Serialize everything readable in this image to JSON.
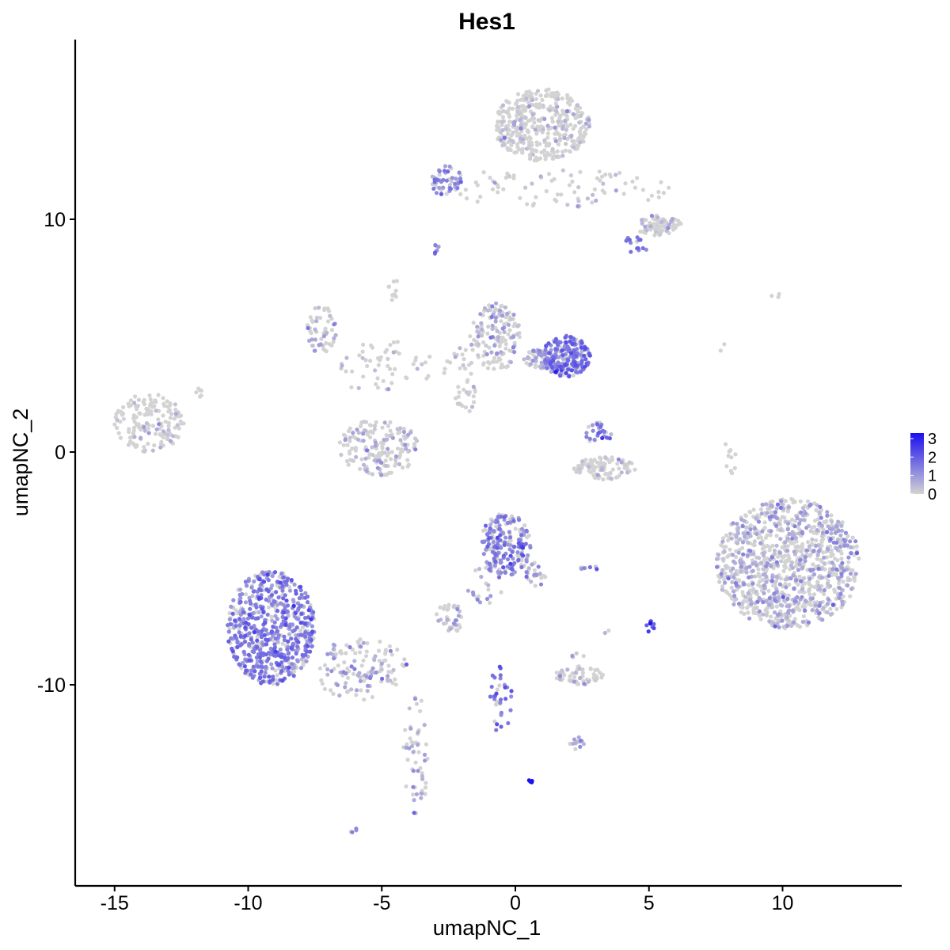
{
  "chart_data": {
    "type": "scatter",
    "title": "Hes1",
    "xlabel": "umapNC_1",
    "ylabel": "umapNC_2",
    "xlim": [
      -16.5,
      14.5
    ],
    "ylim": [
      -18.5,
      17.5
    ],
    "xticks": [
      -15,
      -10,
      -5,
      0,
      5,
      10
    ],
    "yticks": [
      -10,
      0,
      10
    ],
    "grid": false,
    "legend": {
      "placement": "right",
      "type": "colorbar",
      "labels": [
        "3",
        "2",
        "1",
        "0"
      ],
      "min": 0,
      "max": 3.3,
      "low_color": "#d3d3d3",
      "high_color": "#1c0ff0"
    },
    "point_color_low": "#d3d3d3",
    "point_color_high": "#1c0ff0",
    "clusters": [
      {
        "x": [
          -15.0,
          -12.4
        ],
        "y": [
          0.0,
          2.5
        ],
        "mean": 0.02,
        "weight": 170
      },
      {
        "x": [
          -12.0,
          -11.5
        ],
        "y": [
          2.3,
          2.8
        ],
        "mean": 0.0,
        "weight": 6
      },
      {
        "x": [
          -7.8,
          -6.7
        ],
        "y": [
          4.2,
          6.3
        ],
        "mean": 0.5,
        "weight": 55
      },
      {
        "x": [
          -6.8,
          -3.0
        ],
        "y": [
          2.5,
          4.8
        ],
        "mean": 0.05,
        "weight": 55
      },
      {
        "x": [
          -4.8,
          -4.4
        ],
        "y": [
          6.5,
          7.6
        ],
        "mean": 0.0,
        "weight": 10
      },
      {
        "x": [
          -2.8,
          -1.3
        ],
        "y": [
          1.5,
          4.5
        ],
        "mean": 0.05,
        "weight": 40
      },
      {
        "x": [
          -6.6,
          -3.6
        ],
        "y": [
          -1.0,
          1.4
        ],
        "mean": 0.35,
        "weight": 170
      },
      {
        "x": [
          -1.7,
          0.2
        ],
        "y": [
          3.5,
          6.4
        ],
        "mean": 0.55,
        "weight": 150
      },
      {
        "x": [
          0.3,
          1.6
        ],
        "y": [
          3.6,
          4.4
        ],
        "mean": 0.7,
        "weight": 60
      },
      {
        "x": [
          1.0,
          2.8
        ],
        "y": [
          3.2,
          5.0
        ],
        "mean": 1.5,
        "weight": 220
      },
      {
        "x": [
          2.2,
          4.5
        ],
        "y": [
          -1.2,
          -0.2
        ],
        "mean": 0.15,
        "weight": 100
      },
      {
        "x": [
          2.6,
          3.6
        ],
        "y": [
          0.3,
          1.3
        ],
        "mean": 1.4,
        "weight": 30
      },
      {
        "x": [
          -3.2,
          6.0
        ],
        "y": [
          10.5,
          12.2
        ],
        "mean": 0.15,
        "weight": 90
      },
      {
        "x": [
          -0.8,
          2.8
        ],
        "y": [
          12.5,
          15.6
        ],
        "mean": 0.05,
        "weight": 400
      },
      {
        "x": [
          -3.2,
          -2.0
        ],
        "y": [
          11.0,
          12.3
        ],
        "mean": 1.1,
        "weight": 50
      },
      {
        "x": [
          4.5,
          6.2
        ],
        "y": [
          9.3,
          10.2
        ],
        "mean": 0.05,
        "weight": 90
      },
      {
        "x": [
          4.0,
          5.0
        ],
        "y": [
          8.4,
          9.3
        ],
        "mean": 1.4,
        "weight": 15
      },
      {
        "x": [
          -3.2,
          -2.8
        ],
        "y": [
          8.5,
          8.9
        ],
        "mean": 1.3,
        "weight": 6
      },
      {
        "x": [
          7.5,
          12.9
        ],
        "y": [
          -7.6,
          -2.0
        ],
        "mean": 0.55,
        "weight": 1050
      },
      {
        "x": [
          7.7,
          8.3
        ],
        "y": [
          -1.2,
          0.6
        ],
        "mean": 0.0,
        "weight": 10
      },
      {
        "x": [
          9.4,
          10.0
        ],
        "y": [
          6.5,
          6.9
        ],
        "mean": 0.0,
        "weight": 3
      },
      {
        "x": [
          7.6,
          7.9
        ],
        "y": [
          4.2,
          4.7
        ],
        "mean": 0.0,
        "weight": 2
      },
      {
        "x": [
          -1.3,
          0.6
        ],
        "y": [
          -5.3,
          -2.6
        ],
        "mean": 1.3,
        "weight": 200
      },
      {
        "x": [
          0.4,
          1.2
        ],
        "y": [
          -5.8,
          -4.7
        ],
        "mean": 0.9,
        "weight": 25
      },
      {
        "x": [
          -1.8,
          -0.4
        ],
        "y": [
          -6.6,
          -4.8
        ],
        "mean": 0.9,
        "weight": 25
      },
      {
        "x": [
          -3.0,
          -1.9
        ],
        "y": [
          -7.8,
          -6.5
        ],
        "mean": 0.6,
        "weight": 35
      },
      {
        "x": [
          2.4,
          3.1
        ],
        "y": [
          -5.1,
          -4.9
        ],
        "mean": 1.4,
        "weight": 8
      },
      {
        "x": [
          1.5,
          3.3
        ],
        "y": [
          -10.0,
          -9.2
        ],
        "mean": 0.25,
        "weight": 60
      },
      {
        "x": [
          2.0,
          2.6
        ],
        "y": [
          -8.9,
          -8.6
        ],
        "mean": 0.2,
        "weight": 5
      },
      {
        "x": [
          2.0,
          2.6
        ],
        "y": [
          -12.8,
          -12.2
        ],
        "mean": 0.8,
        "weight": 12
      },
      {
        "x": [
          -1.0,
          0.0
        ],
        "y": [
          -12.1,
          -9.1
        ],
        "mean": 1.5,
        "weight": 35
      },
      {
        "x": [
          0.5,
          0.7
        ],
        "y": [
          -14.2,
          -14.0
        ],
        "mean": 3.3,
        "weight": 4
      },
      {
        "x": [
          4.9,
          5.2
        ],
        "y": [
          -7.8,
          -7.1
        ],
        "mean": 2.4,
        "weight": 8
      },
      {
        "x": [
          3.2,
          3.5
        ],
        "y": [
          -7.9,
          -7.5
        ],
        "mean": 0.5,
        "weight": 2
      },
      {
        "x": [
          -10.8,
          -7.5
        ],
        "y": [
          -10.0,
          -5.1
        ],
        "mean": 1.4,
        "weight": 620
      },
      {
        "x": [
          -7.5,
          -4.0
        ],
        "y": [
          -10.7,
          -8.0
        ],
        "mean": 0.6,
        "weight": 130
      },
      {
        "x": [
          -4.2,
          -3.2
        ],
        "y": [
          -15.6,
          -10.5
        ],
        "mean": 0.6,
        "weight": 55
      },
      {
        "x": [
          -6.2,
          -5.9
        ],
        "y": [
          -16.4,
          -16.1
        ],
        "mean": 1.3,
        "weight": 4
      }
    ]
  }
}
